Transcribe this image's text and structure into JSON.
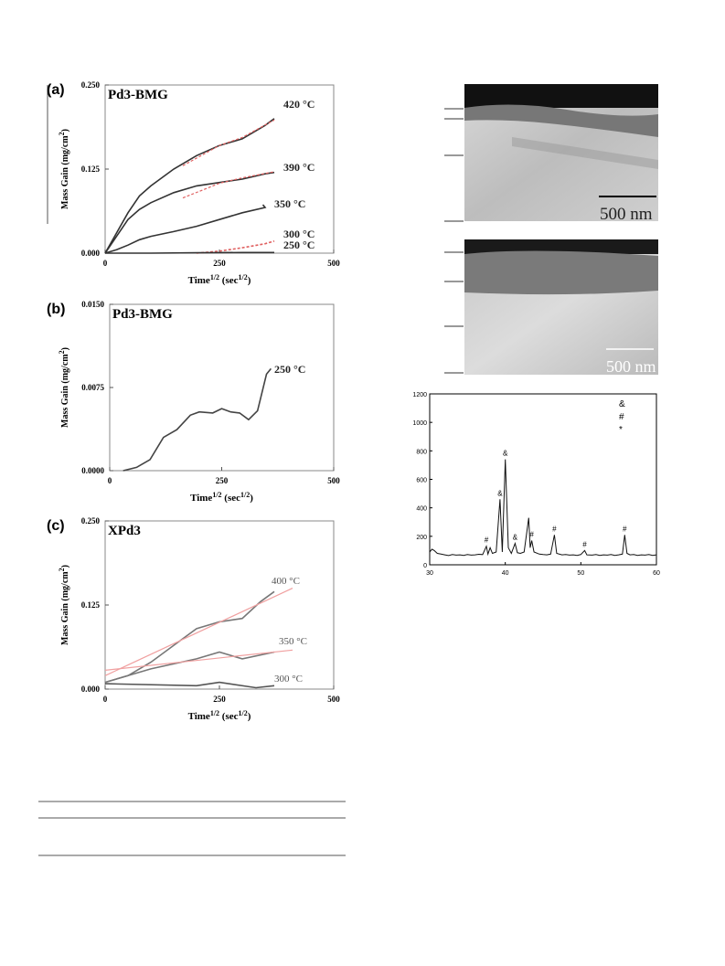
{
  "chart_data": [
    {
      "type": "line",
      "panel": "(a)",
      "title": "Pd3-BMG",
      "x_label": [
        "Time",
        "1/2",
        " (sec",
        "1/2",
        ")"
      ],
      "y_label": [
        "Mass Gain (mg/cm",
        "2",
        ")"
      ],
      "xlim": [
        0,
        500
      ],
      "xticks": [
        0,
        250,
        500
      ],
      "ylim": [
        0,
        0.25
      ],
      "yticks": [
        {
          "value": 0,
          "label": "0.000"
        },
        {
          "value": 0.125,
          "label": "0.125"
        },
        {
          "value": 0.25,
          "label": "0.250"
        }
      ],
      "series": [
        {
          "name": "420 °C",
          "color": "#333333",
          "x": [
            0,
            25,
            50,
            75,
            100,
            150,
            200,
            250,
            300,
            350,
            370
          ],
          "values": [
            0,
            0.03,
            0.06,
            0.085,
            0.1,
            0.125,
            0.145,
            0.16,
            0.17,
            0.19,
            0.2
          ],
          "fit": {
            "color": "#e06060",
            "x": [
              170,
              250,
              300,
              370
            ],
            "values": [
              0.13,
              0.16,
              0.172,
              0.198
            ]
          }
        },
        {
          "name": "390 °C",
          "color": "#333333",
          "x": [
            0,
            25,
            50,
            75,
            100,
            150,
            200,
            250,
            300,
            350,
            370
          ],
          "values": [
            0,
            0.025,
            0.05,
            0.065,
            0.075,
            0.09,
            0.1,
            0.105,
            0.11,
            0.118,
            0.12
          ],
          "fit": {
            "color": "#e06060",
            "x": [
              170,
              250,
              300,
              370
            ],
            "values": [
              0.082,
              0.104,
              0.112,
              0.121
            ]
          }
        },
        {
          "name": "350 °C",
          "color": "#333333",
          "x": [
            0,
            25,
            50,
            75,
            100,
            150,
            200,
            250,
            300,
            350,
            345
          ],
          "values": [
            0,
            0.005,
            0.012,
            0.02,
            0.025,
            0.032,
            0.04,
            0.05,
            0.06,
            0.068,
            0.072
          ]
        },
        {
          "name": "300 °C",
          "color": "#e06060",
          "dashed": true,
          "x": [
            200,
            250,
            300,
            350,
            370
          ],
          "values": [
            0,
            0.003,
            0.008,
            0.014,
            0.018
          ]
        },
        {
          "name": "250 °C",
          "color": "#333333",
          "x": [
            0,
            100,
            200,
            300,
            370
          ],
          "values": [
            0,
            0,
            0.0005,
            0.001,
            0.001
          ]
        }
      ]
    },
    {
      "type": "line",
      "panel": "(b)",
      "title": "Pd3-BMG",
      "x_label": [
        "Time",
        "1/2",
        " (sec",
        "1/2",
        ")"
      ],
      "y_label": [
        "Mass Gain (mg/cm",
        "2",
        ")"
      ],
      "xlim": [
        0,
        500
      ],
      "xticks": [
        0,
        250,
        500
      ],
      "ylim": [
        0,
        0.015
      ],
      "yticks": [
        {
          "value": 0,
          "label": "0.0000"
        },
        {
          "value": 0.0075,
          "label": "0.0075"
        },
        {
          "value": 0.015,
          "label": "0.0150"
        }
      ],
      "series": [
        {
          "name": "250 °C",
          "color": "#444444",
          "x": [
            30,
            60,
            90,
            120,
            150,
            180,
            200,
            230,
            250,
            270,
            290,
            310,
            330,
            350,
            360
          ],
          "values": [
            0,
            0.0003,
            0.001,
            0.003,
            0.0037,
            0.005,
            0.0053,
            0.0052,
            0.0056,
            0.0053,
            0.0052,
            0.0046,
            0.0054,
            0.0087,
            0.0092
          ]
        }
      ]
    },
    {
      "type": "line",
      "panel": "(c)",
      "title": "XPd3",
      "x_label": [
        "Time",
        "1/2",
        " (sec",
        "1/2",
        ")"
      ],
      "y_label": [
        "Mass Gain (mg/cm",
        "2",
        ")"
      ],
      "xlim": [
        0,
        500
      ],
      "xticks": [
        0,
        250,
        500
      ],
      "ylim": [
        0,
        0.25
      ],
      "yticks": [
        {
          "value": 0,
          "label": "0.000"
        },
        {
          "value": 0.125,
          "label": "0.125"
        },
        {
          "value": 0.25,
          "label": "0.250"
        }
      ],
      "series": [
        {
          "name": "400 °C",
          "color": "#777777",
          "x": [
            0,
            50,
            100,
            160,
            200,
            250,
            300,
            340,
            370
          ],
          "values": [
            0.01,
            0.02,
            0.04,
            0.07,
            0.09,
            0.1,
            0.105,
            0.13,
            0.145
          ],
          "fit": {
            "color": "#f0a0a0",
            "x": [
              0,
              410
            ],
            "values": [
              0.02,
              0.15
            ]
          }
        },
        {
          "name": "350 °C",
          "color": "#777777",
          "x": [
            0,
            100,
            200,
            250,
            300,
            370
          ],
          "values": [
            0.01,
            0.03,
            0.045,
            0.055,
            0.045,
            0.055
          ],
          "fit": {
            "color": "#f0a0a0",
            "x": [
              0,
              410
            ],
            "values": [
              0.028,
              0.058
            ]
          }
        },
        {
          "name": "300 °C",
          "color": "#555555",
          "x": [
            0,
            200,
            250,
            330,
            370
          ],
          "values": [
            0.008,
            0.005,
            0.01,
            0.002,
            0.005
          ]
        }
      ]
    },
    {
      "type": "xrd",
      "xlim": [
        30,
        60
      ],
      "xticks": [
        30,
        40,
        50,
        60
      ],
      "ylim": [
        0,
        1200
      ],
      "yticks": [
        0,
        200,
        400,
        600,
        800,
        1000,
        1200
      ],
      "key": [
        "&",
        "#",
        "*"
      ],
      "series": [
        {
          "color": "#111111",
          "x": [
            30,
            30.3,
            30.6,
            31,
            31.5,
            32,
            32.5,
            33,
            33.5,
            34,
            34.5,
            35,
            35.5,
            36,
            36.5,
            37,
            37.5,
            37.7,
            38,
            38.3,
            38.8,
            39.3,
            39.6,
            40,
            40.4,
            40.8,
            41.3,
            41.6,
            42,
            42.5,
            43.1,
            43.3,
            43.5,
            43.8,
            44.5,
            45,
            45.5,
            46,
            46.5,
            46.8,
            47.5,
            48,
            48.5,
            49,
            49.5,
            50,
            50.5,
            50.8,
            51.5,
            52,
            52.5,
            53,
            53.5,
            54,
            54.5,
            55,
            55.5,
            55.8,
            56.1,
            56.5,
            57,
            57.5,
            58,
            58.5,
            59,
            59.5,
            60
          ],
          "values": [
            90,
            110,
            100,
            80,
            75,
            70,
            65,
            72,
            68,
            70,
            66,
            72,
            68,
            70,
            74,
            72,
            130,
            75,
            120,
            80,
            90,
            460,
            90,
            740,
            120,
            80,
            150,
            85,
            80,
            90,
            330,
            120,
            170,
            90,
            75,
            72,
            70,
            75,
            210,
            80,
            70,
            72,
            68,
            70,
            66,
            72,
            100,
            70,
            68,
            72,
            66,
            70,
            68,
            72,
            66,
            70,
            75,
            210,
            80,
            70,
            72,
            66,
            70,
            68,
            72,
            66,
            70
          ]
        }
      ],
      "annotations": [
        {
          "x": 37.5,
          "y": 130,
          "text": "#"
        },
        {
          "x": 39.3,
          "y": 460,
          "text": "&"
        },
        {
          "x": 40,
          "y": 740,
          "text": "&"
        },
        {
          "x": 41.3,
          "y": 150,
          "text": "&"
        },
        {
          "x": 43.5,
          "y": 170,
          "text": "#"
        },
        {
          "x": 46.5,
          "y": 210,
          "text": "#"
        },
        {
          "x": 50.5,
          "y": 100,
          "text": "#"
        },
        {
          "x": 55.8,
          "y": 210,
          "text": "#"
        }
      ]
    }
  ],
  "images": [
    {
      "scale_bar": "500 nm"
    },
    {
      "scale_bar": "500 nm"
    }
  ]
}
